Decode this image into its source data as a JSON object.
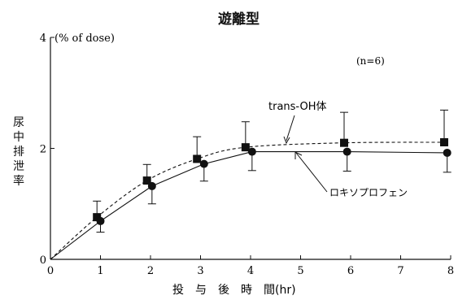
{
  "chart_data": {
    "type": "line",
    "title": "遊離型",
    "ylabel": "尿中排泄率",
    "y_unit": "(% of dose)",
    "xlabel": "投　与　後　時　間(hr)",
    "annotation": "(n=6)",
    "xlim": [
      0,
      8
    ],
    "ylim": [
      0,
      4
    ],
    "x_ticks": [
      "0",
      "1",
      "2",
      "3",
      "4",
      "5",
      "6",
      "7",
      "8"
    ],
    "y_ticks": [
      "0",
      "2",
      "4"
    ],
    "series": [
      {
        "name": "trans-OH体",
        "marker": "square",
        "line_style": "dashed",
        "x": [
          0,
          0.93,
          1.93,
          2.93,
          3.9,
          5.87,
          7.87
        ],
        "y": [
          0,
          0.76,
          1.42,
          1.81,
          2.02,
          2.1,
          2.11
        ],
        "err_upper": [
          0,
          1.05,
          1.71,
          2.21,
          2.48,
          2.65,
          2.69
        ],
        "err_lower": [
          0,
          0.76,
          1.42,
          1.81,
          2.02,
          2.1,
          2.11
        ]
      },
      {
        "name": "ロキソプロフェン",
        "marker": "circle",
        "line_style": "solid",
        "x": [
          0,
          1.0,
          2.03,
          3.07,
          4.03,
          5.93,
          7.93
        ],
        "y": [
          0,
          0.69,
          1.32,
          1.72,
          1.94,
          1.94,
          1.92
        ],
        "err_upper": [
          0,
          0.69,
          1.32,
          1.72,
          1.94,
          1.94,
          1.92
        ],
        "err_lower": [
          0,
          0.49,
          1.0,
          1.41,
          1.6,
          1.59,
          1.57
        ]
      }
    ]
  }
}
